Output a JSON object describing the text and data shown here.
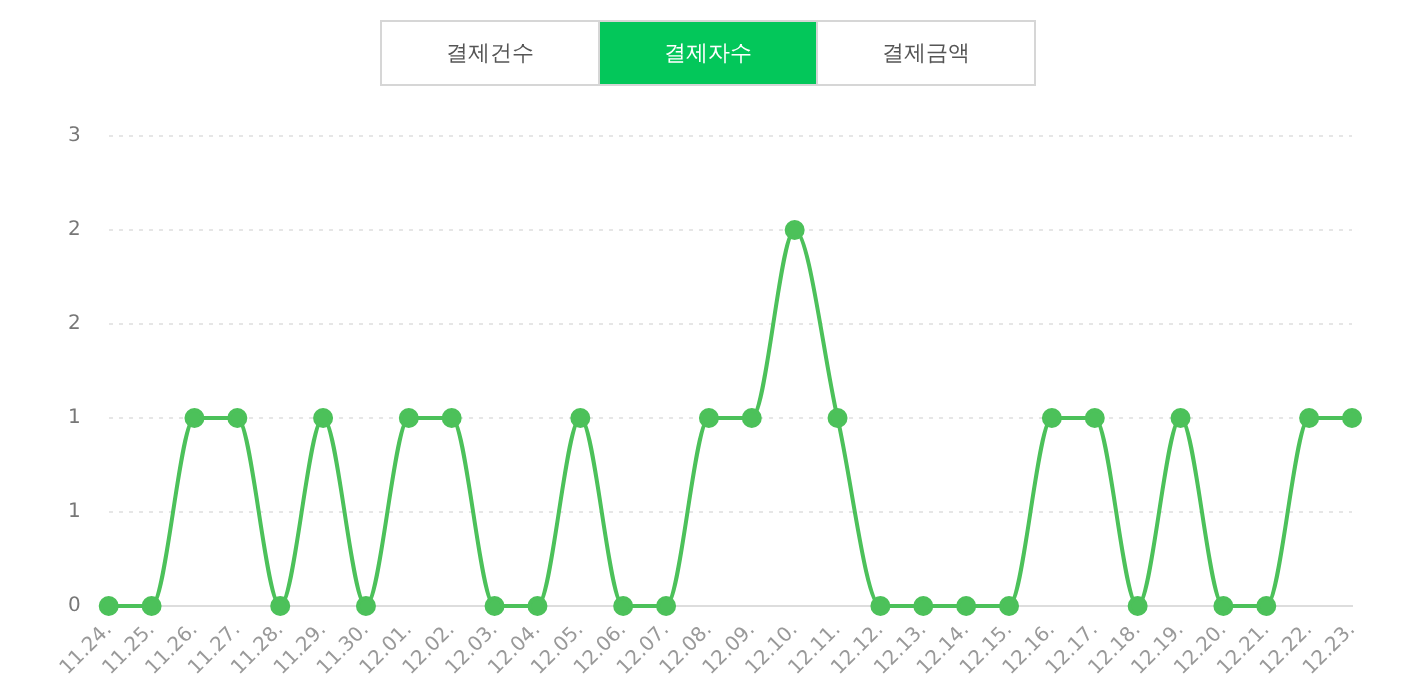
{
  "chart_data": {
    "type": "line",
    "annotations": [
      "결제건수",
      "결제자수",
      "결제금액"
    ],
    "categories": [
      "11.24.",
      "11.25.",
      "11.26.",
      "11.27.",
      "11.28.",
      "11.29.",
      "11.30.",
      "12.01.",
      "12.02.",
      "12.03.",
      "12.04.",
      "12.05.",
      "12.06.",
      "12.07.",
      "12.08.",
      "12.09.",
      "12.10.",
      "12.11.",
      "12.12.",
      "12.13.",
      "12.14.",
      "12.15.",
      "12.16.",
      "12.17.",
      "12.18.",
      "12.19.",
      "12.20.",
      "12.21.",
      "12.22.",
      "12.23."
    ],
    "series": [
      {
        "color": "#4cc15a",
        "values": [
          0,
          0,
          1,
          1,
          0,
          1,
          0,
          1,
          1,
          0,
          0,
          1,
          0,
          0,
          1,
          1,
          2,
          1,
          0,
          0,
          0,
          0,
          1,
          1,
          0,
          1,
          0,
          0,
          1,
          1
        ]
      }
    ],
    "ylim": [
      0,
      2.5
    ],
    "yticks": [
      0,
      {
        "value": 0.5,
        "label": "1"
      },
      1,
      {
        "value": 1.5,
        "label": "2"
      },
      2,
      {
        "value": 2.5,
        "label": "3"
      }
    ],
    "grid": "y",
    "legend": false,
    "marker": "circle",
    "line_style": "solid"
  }
}
